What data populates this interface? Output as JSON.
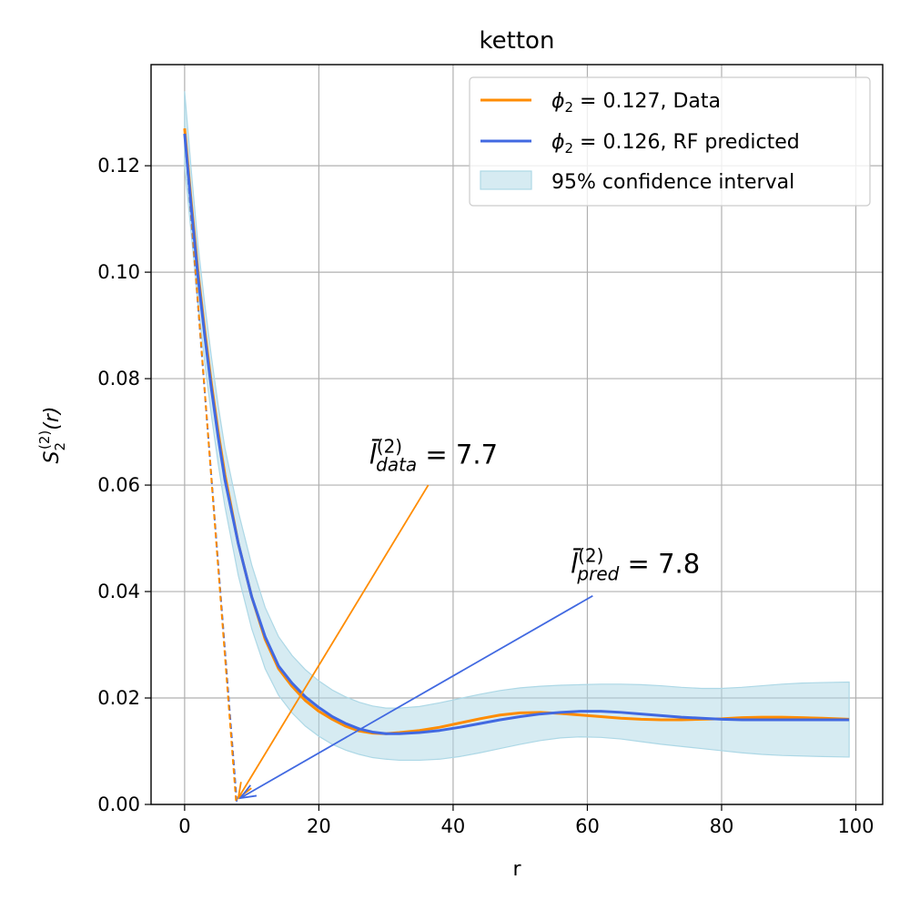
{
  "chart_data": {
    "type": "line",
    "title": "ketton",
    "xlabel": "r",
    "ylabel": "S_2^(2)(r)",
    "ylabel_parts": {
      "base": "S",
      "sub": "2",
      "sup": "(2)",
      "suffix": "(r)"
    },
    "xlim": [
      -5,
      104
    ],
    "ylim": [
      0,
      0.139
    ],
    "xticks": [
      0,
      20,
      40,
      60,
      80,
      100
    ],
    "xtick_labels": [
      "0",
      "20",
      "40",
      "60",
      "80",
      "100"
    ],
    "yticks": [
      0.0,
      0.02,
      0.04,
      0.06,
      0.08,
      0.1,
      0.12
    ],
    "ytick_labels": [
      "0.00",
      "0.02",
      "0.04",
      "0.06",
      "0.08",
      "0.10",
      "0.12"
    ],
    "grid": true,
    "legend_position": "top-right",
    "series": [
      {
        "name": "φ2 = 0.127, Data",
        "legend_label": {
          "symbol": "ϕ",
          "sub": "2",
          "rest": " = 0.127, Data"
        },
        "color": "#ff8c00",
        "x": [
          0,
          1,
          2,
          3,
          4,
          5,
          6,
          8,
          10,
          12,
          14,
          16,
          18,
          20,
          22,
          24,
          26,
          28,
          30,
          32,
          35,
          38,
          41,
          44,
          47,
          50,
          53,
          56,
          59,
          62,
          65,
          68,
          71,
          74,
          77,
          80,
          83,
          86,
          89,
          92,
          95,
          99
        ],
        "y": [
          0.127,
          0.113,
          0.1,
          0.089,
          0.079,
          0.07,
          0.062,
          0.049,
          0.039,
          0.031,
          0.0255,
          0.0222,
          0.0195,
          0.0175,
          0.016,
          0.0147,
          0.0138,
          0.0134,
          0.0133,
          0.0135,
          0.0139,
          0.0145,
          0.0153,
          0.0161,
          0.0168,
          0.0172,
          0.0173,
          0.0171,
          0.0168,
          0.0165,
          0.0162,
          0.016,
          0.0159,
          0.0159,
          0.016,
          0.0161,
          0.0163,
          0.0164,
          0.0164,
          0.0163,
          0.0162,
          0.016
        ]
      },
      {
        "name": "φ2 = 0.126, RF predicted",
        "legend_label": {
          "symbol": "ϕ",
          "sub": "2",
          "rest": " = 0.126, RF predicted"
        },
        "color": "#4169e1",
        "x": [
          0,
          1,
          2,
          3,
          4,
          5,
          6,
          8,
          10,
          12,
          14,
          16,
          18,
          20,
          22,
          24,
          26,
          28,
          30,
          32,
          35,
          38,
          41,
          44,
          47,
          50,
          53,
          56,
          59,
          62,
          65,
          68,
          71,
          74,
          77,
          80,
          83,
          86,
          89,
          92,
          95,
          99
        ],
        "y": [
          0.126,
          0.112,
          0.099,
          0.088,
          0.078,
          0.069,
          0.061,
          0.049,
          0.039,
          0.0315,
          0.026,
          0.0228,
          0.0202,
          0.0182,
          0.0165,
          0.0152,
          0.0142,
          0.0136,
          0.0133,
          0.0133,
          0.0135,
          0.0139,
          0.0145,
          0.0152,
          0.0159,
          0.0165,
          0.017,
          0.0173,
          0.0175,
          0.0175,
          0.0173,
          0.017,
          0.0167,
          0.0164,
          0.0162,
          0.016,
          0.0159,
          0.0159,
          0.0159,
          0.0159,
          0.0159,
          0.0159
        ]
      }
    ],
    "confidence_band": {
      "name": "95% confidence interval",
      "color": "#add8e6",
      "x": [
        0,
        1,
        2,
        3,
        4,
        5,
        6,
        8,
        10,
        12,
        14,
        16,
        18,
        20,
        22,
        24,
        26,
        28,
        30,
        32,
        35,
        38,
        41,
        44,
        47,
        50,
        53,
        56,
        59,
        62,
        65,
        68,
        71,
        74,
        77,
        80,
        83,
        86,
        89,
        92,
        95,
        99
      ],
      "lower": [
        0.12,
        0.107,
        0.094,
        0.083,
        0.073,
        0.064,
        0.056,
        0.043,
        0.033,
        0.0255,
        0.0205,
        0.0172,
        0.0147,
        0.0128,
        0.0113,
        0.0102,
        0.0094,
        0.0088,
        0.0085,
        0.0083,
        0.0083,
        0.0085,
        0.009,
        0.0097,
        0.0105,
        0.0113,
        0.012,
        0.0125,
        0.0127,
        0.0126,
        0.0123,
        0.0118,
        0.0113,
        0.0109,
        0.0105,
        0.0101,
        0.0097,
        0.0094,
        0.0092,
        0.0091,
        0.009,
        0.0089
      ],
      "upper": [
        0.134,
        0.119,
        0.105,
        0.094,
        0.084,
        0.075,
        0.067,
        0.055,
        0.045,
        0.037,
        0.0315,
        0.028,
        0.0253,
        0.0232,
        0.0215,
        0.0202,
        0.0192,
        0.0185,
        0.0181,
        0.0181,
        0.0184,
        0.0191,
        0.0199,
        0.0207,
        0.0214,
        0.0219,
        0.0222,
        0.0224,
        0.0225,
        0.0226,
        0.0226,
        0.0225,
        0.0223,
        0.022,
        0.0218,
        0.0218,
        0.022,
        0.0223,
        0.0226,
        0.0228,
        0.0229,
        0.023
      ]
    },
    "tangent_lines": [
      {
        "color": "#4169e1",
        "x": [
          0,
          7.8
        ],
        "y": [
          0.126,
          0.0
        ]
      },
      {
        "color": "#ff8c00",
        "x": [
          0,
          7.7
        ],
        "y": [
          0.127,
          0.0
        ]
      }
    ],
    "annotations": [
      {
        "id": "data",
        "value": "7.7",
        "label": {
          "base": "l̄",
          "sup": "(2)",
          "sub": "data",
          "rest": " = 7.7"
        },
        "color": "#ff8c00",
        "text_at": [
          27.5,
          0.064
        ],
        "arrow_from": [
          36.3,
          0.06
        ],
        "arrow_to": [
          8.0,
          0.0012
        ]
      },
      {
        "id": "pred",
        "value": "7.8",
        "label": {
          "base": "l̄",
          "sup": "(2)",
          "sub": "pred",
          "rest": " = 7.8"
        },
        "color": "#4169e1",
        "text_at": [
          57.5,
          0.0435
        ],
        "arrow_from": [
          60.8,
          0.0392
        ],
        "arrow_to": [
          8.3,
          0.0012
        ]
      }
    ]
  }
}
